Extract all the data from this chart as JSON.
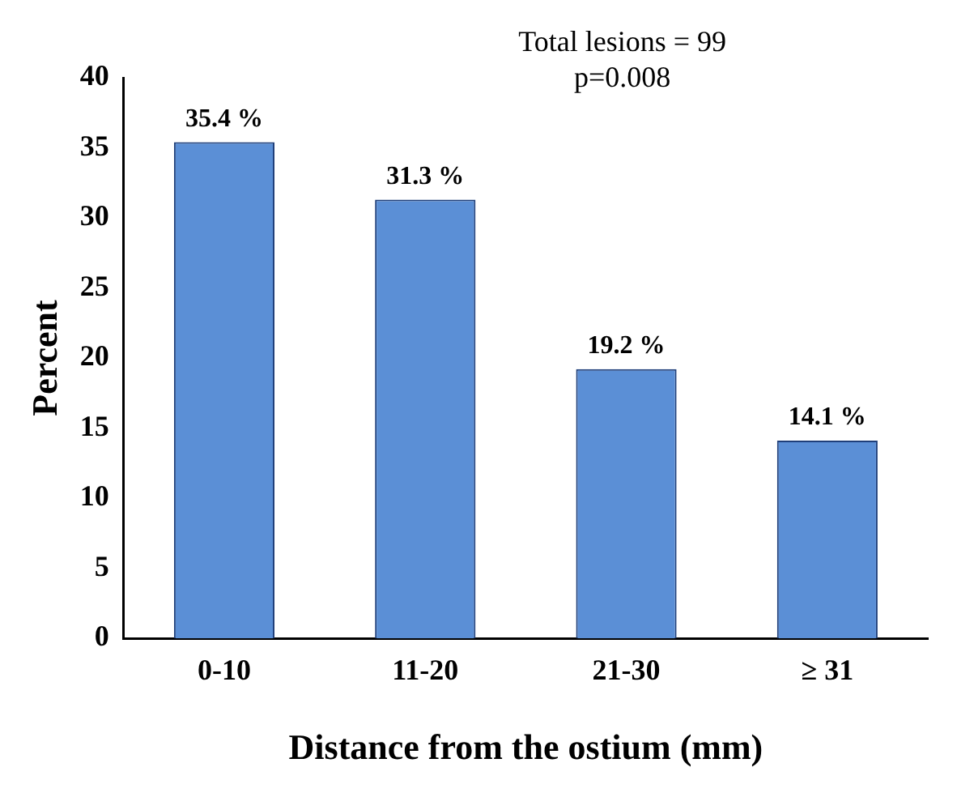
{
  "chart_data": {
    "type": "bar",
    "xlabel": "Distance from the ostium (mm)",
    "ylabel": "Percent",
    "categories": [
      "0-10",
      "11-20",
      "21-30",
      "≥ 31"
    ],
    "values": [
      35.4,
      31.3,
      19.2,
      14.1
    ],
    "value_labels": [
      "35.4 %",
      "31.3 %",
      "19.2 %",
      "14.1 %"
    ],
    "color": "#5b8fd6",
    "ylim": [
      0,
      40
    ],
    "yticks": [
      0,
      5,
      10,
      15,
      20,
      25,
      30,
      35,
      40
    ],
    "grid": false,
    "legend": false,
    "annotations": [
      "Total lesions = 99",
      "p=0.008"
    ]
  }
}
